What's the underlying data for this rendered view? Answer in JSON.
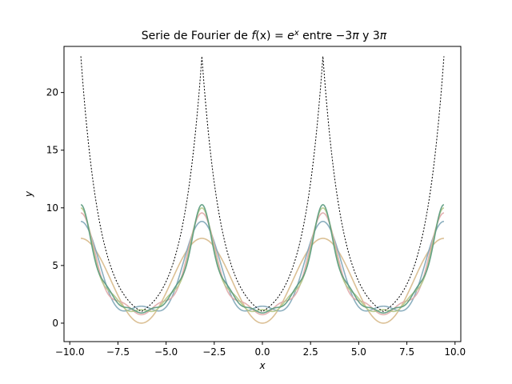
{
  "chart_data": {
    "type": "line",
    "title": {
      "prefix": "Serie de Fourier de ",
      "func": "f",
      "args": "(x) = ",
      "base": "e",
      "exponent": "x",
      "middle": " entre −3",
      "pi1": "π",
      "y": " y 3",
      "pi2": "π"
    },
    "xlabel": "x",
    "ylabel": "y",
    "xlim": [
      -10.3,
      10.3
    ],
    "ylim": [
      -1.6,
      24.0
    ],
    "xticks": [
      -10.0,
      -7.5,
      -5.0,
      -2.5,
      0.0,
      2.5,
      5.0,
      7.5,
      10.0
    ],
    "xtick_labels": [
      "−10.0",
      "−7.5",
      "−5.0",
      "−2.5",
      "0.0",
      "2.5",
      "5.0",
      "7.5",
      "10.0"
    ],
    "yticks": [
      0,
      5,
      10,
      15,
      20
    ],
    "ytick_labels": [
      "0",
      "5",
      "10",
      "15",
      "20"
    ],
    "x_domain": [
      -9.42478,
      9.42478
    ],
    "function": "e^|x - 2πk| (periodic, period 2π)",
    "series": [
      {
        "order": 1,
        "color": "#d7b98a",
        "values_at_x0": 1.0
      },
      {
        "order": 2,
        "color": "#7fa6b8",
        "values_at_x0": 1.0
      },
      {
        "order": 3,
        "color": "#e0a8a8",
        "values_at_x0": 1.0
      },
      {
        "order": 4,
        "color": "#b4c987",
        "values_at_x0": 1.0
      },
      {
        "order": 5,
        "color": "#5a9a7e",
        "values_at_x0": 1.0
      }
    ],
    "grid": false,
    "legend": "none"
  }
}
